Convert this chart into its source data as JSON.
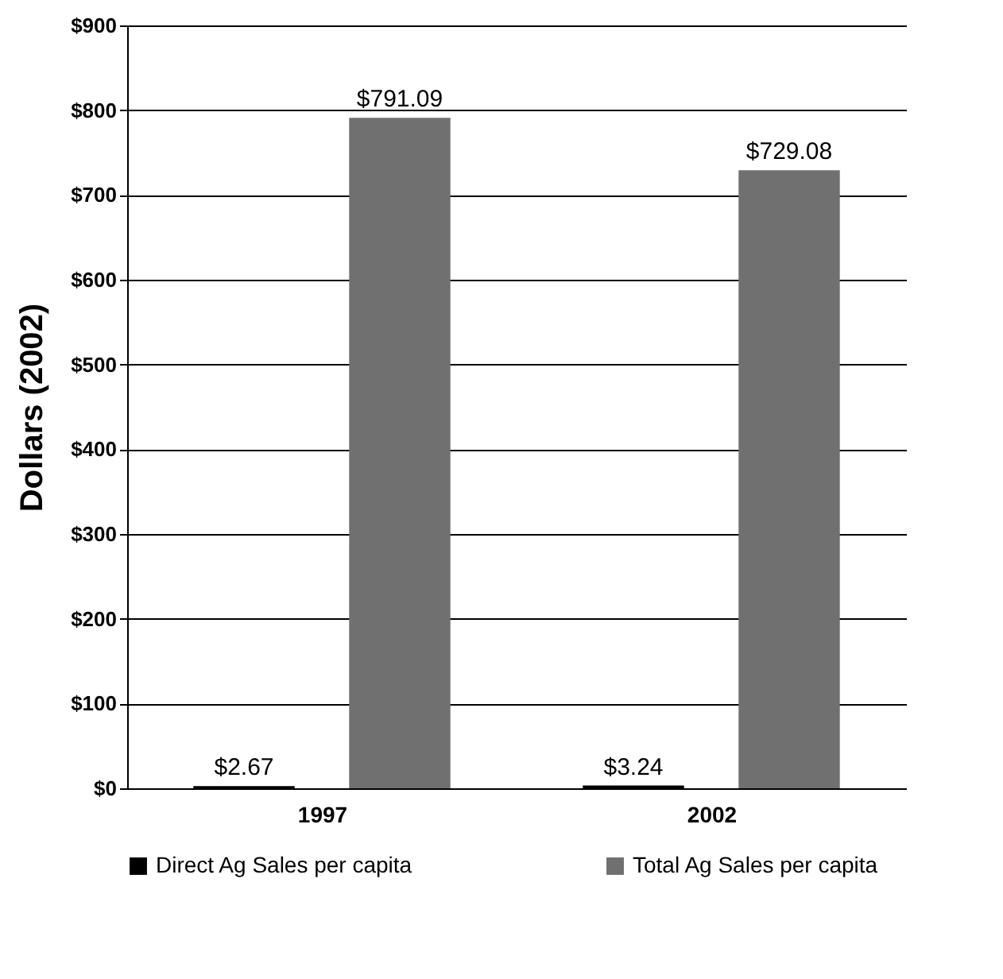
{
  "chart_data": {
    "type": "bar",
    "ylabel": "Dollars (2002)",
    "categories": [
      "1997",
      "2002"
    ],
    "series": [
      {
        "name": "Direct Ag Sales per capita",
        "color": "#000000",
        "values": [
          2.67,
          3.24
        ],
        "value_labels": [
          "$2.67",
          "$3.24"
        ]
      },
      {
        "name": "Total Ag Sales per capita",
        "color": "#707070",
        "values": [
          791.09,
          729.08
        ],
        "value_labels": [
          "$791.09",
          "$729.08"
        ]
      }
    ],
    "ylim": [
      0,
      900
    ],
    "yticks": [
      {
        "value": 0,
        "label": "$0"
      },
      {
        "value": 100,
        "label": "$100"
      },
      {
        "value": 200,
        "label": "$200"
      },
      {
        "value": 300,
        "label": "$300"
      },
      {
        "value": 400,
        "label": "$400"
      },
      {
        "value": 500,
        "label": "$500"
      },
      {
        "value": 600,
        "label": "$600"
      },
      {
        "value": 700,
        "label": "$700"
      },
      {
        "value": 800,
        "label": "$800"
      },
      {
        "value": 900,
        "label": "$900"
      }
    ],
    "grid": "y",
    "legend": "bottom"
  }
}
